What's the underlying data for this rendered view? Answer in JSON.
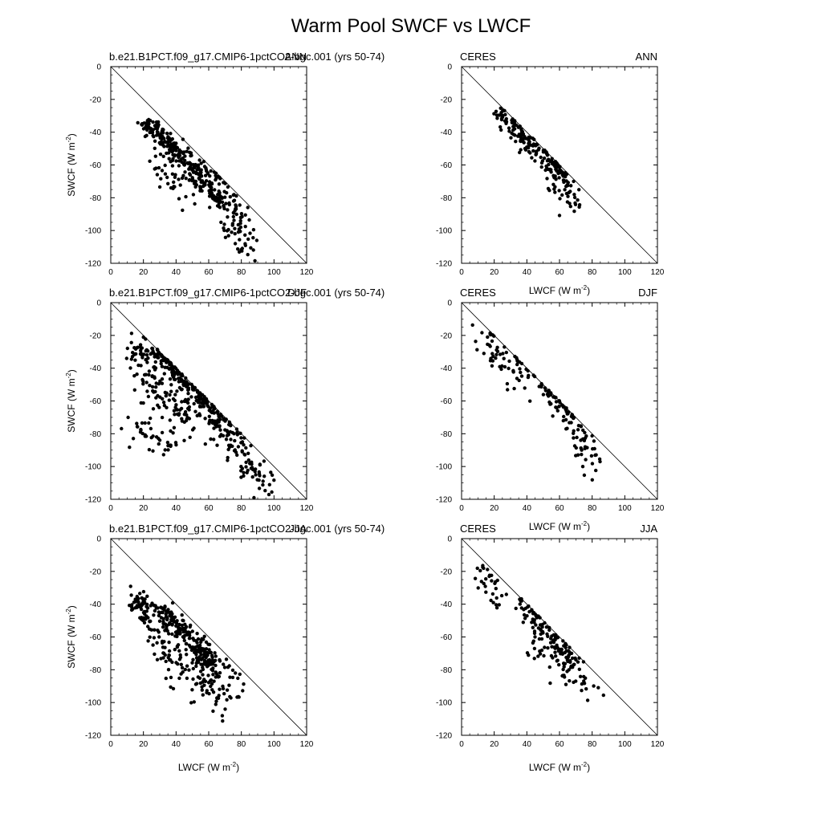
{
  "figure": {
    "title": "Warm Pool SWCF vs LWCF",
    "xlabel": "LWCF (W m",
    "ylabel": "SWCF (W m",
    "unit_exponent": "-2",
    "unit_close": ")"
  },
  "chart_data": [
    {
      "type": "scatter",
      "left_label": "b.e21.B1PCT.f09_g17.CMIP6-1pctCO2-bgc.001 (yrs 50-74)",
      "right_label": "ANN",
      "xlabel": "",
      "ylabel": "SWCF (W m-2)",
      "xlim": [
        0,
        120
      ],
      "ylim": [
        -120,
        0
      ],
      "xticks": [
        0,
        20,
        40,
        60,
        80,
        100,
        120
      ],
      "yticks": [
        0,
        -20,
        -40,
        -60,
        -80,
        -100,
        -120
      ],
      "reference_line": "1:1 (SWCF = -LWCF)",
      "clusters": [
        {
          "x": [
            20,
            30
          ],
          "y": [
            -36,
            -40
          ],
          "spread": 3,
          "n": 50
        },
        {
          "x": [
            30,
            45
          ],
          "y": [
            -40,
            -56
          ],
          "spread": 4,
          "n": 90
        },
        {
          "x": [
            45,
            60
          ],
          "y": [
            -56,
            -72
          ],
          "spread": 5,
          "n": 90
        },
        {
          "x": [
            60,
            72
          ],
          "y": [
            -70,
            -85
          ],
          "spread": 6,
          "n": 70
        },
        {
          "x": [
            72,
            86
          ],
          "y": [
            -85,
            -112
          ],
          "spread": 7,
          "n": 60
        },
        {
          "x": [
            28,
            50
          ],
          "y": [
            -60,
            -75
          ],
          "spread": 6,
          "n": 40
        }
      ]
    },
    {
      "type": "scatter",
      "left_label": "CERES",
      "right_label": "ANN",
      "xlabel": "",
      "ylabel": "",
      "xlim": [
        0,
        120
      ],
      "ylim": [
        -120,
        0
      ],
      "xticks": [
        0,
        20,
        40,
        60,
        80,
        100,
        120
      ],
      "yticks": [
        0,
        -20,
        -40,
        -60,
        -80,
        -100,
        -120
      ],
      "reference_line": "1:1 (SWCF = -LWCF)",
      "clusters": [
        {
          "x": [
            22,
            35
          ],
          "y": [
            -28,
            -40
          ],
          "spread": 4,
          "n": 50
        },
        {
          "x": [
            35,
            50
          ],
          "y": [
            -40,
            -55
          ],
          "spread": 5,
          "n": 60
        },
        {
          "x": [
            50,
            65
          ],
          "y": [
            -55,
            -70
          ],
          "spread": 6,
          "n": 60
        },
        {
          "x": [
            55,
            72
          ],
          "y": [
            -65,
            -85
          ],
          "spread": 7,
          "n": 40
        }
      ]
    },
    {
      "type": "scatter",
      "left_label": "b.e21.B1PCT.f09_g17.CMIP6-1pctCO2-bgc.001 (yrs 50-74)",
      "right_label": "DJF",
      "xlabel": "",
      "ylabel": "SWCF (W m-2)",
      "xlim": [
        0,
        120
      ],
      "ylim": [
        -120,
        0
      ],
      "xticks": [
        0,
        20,
        40,
        60,
        80,
        100,
        120
      ],
      "yticks": [
        0,
        -20,
        -40,
        -60,
        -80,
        -100,
        -120
      ],
      "reference_line": "1:1 (SWCF = -LWCF)",
      "clusters": [
        {
          "x": [
            12,
            30
          ],
          "y": [
            -28,
            -32
          ],
          "spread": 4,
          "n": 50
        },
        {
          "x": [
            30,
            55
          ],
          "y": [
            -32,
            -58
          ],
          "spread": 5,
          "n": 110
        },
        {
          "x": [
            15,
            50
          ],
          "y": [
            -40,
            -70
          ],
          "spread": 7,
          "n": 110
        },
        {
          "x": [
            55,
            75
          ],
          "y": [
            -58,
            -85
          ],
          "spread": 6,
          "n": 100
        },
        {
          "x": [
            75,
            98
          ],
          "y": [
            -85,
            -115
          ],
          "spread": 6,
          "n": 60
        },
        {
          "x": [
            15,
            40
          ],
          "y": [
            -75,
            -88
          ],
          "spread": 6,
          "n": 40
        }
      ]
    },
    {
      "type": "scatter",
      "left_label": "CERES",
      "right_label": "DJF",
      "xlabel": "",
      "ylabel": "",
      "xlim": [
        0,
        120
      ],
      "ylim": [
        -120,
        0
      ],
      "xticks": [
        0,
        20,
        40,
        60,
        80,
        100,
        120
      ],
      "yticks": [
        0,
        -20,
        -40,
        -60,
        -80,
        -100,
        -120
      ],
      "reference_line": "1:1 (SWCF = -LWCF)",
      "clusters": [
        {
          "x": [
            12,
            30
          ],
          "y": [
            -18,
            -40
          ],
          "spread": 6,
          "n": 40
        },
        {
          "x": [
            30,
            55
          ],
          "y": [
            -35,
            -55
          ],
          "spread": 7,
          "n": 40
        },
        {
          "x": [
            55,
            70
          ],
          "y": [
            -55,
            -75
          ],
          "spread": 6,
          "n": 40
        },
        {
          "x": [
            68,
            84
          ],
          "y": [
            -75,
            -105
          ],
          "spread": 6,
          "n": 40
        }
      ]
    },
    {
      "type": "scatter",
      "left_label": "b.e21.B1PCT.f09_g17.CMIP6-1pctCO2-bgc.001 (yrs 50-74)",
      "right_label": "JJA",
      "xlabel": "LWCF (W m-2)",
      "ylabel": "SWCF (W m-2)",
      "xlim": [
        0,
        120
      ],
      "ylim": [
        -120,
        0
      ],
      "xticks": [
        0,
        20,
        40,
        60,
        80,
        100,
        120
      ],
      "yticks": [
        0,
        -20,
        -40,
        -60,
        -80,
        -100,
        -120
      ],
      "reference_line": "1:1 (SWCF = -LWCF)",
      "clusters": [
        {
          "x": [
            15,
            25
          ],
          "y": [
            -35,
            -50
          ],
          "spread": 5,
          "n": 60
        },
        {
          "x": [
            28,
            45
          ],
          "y": [
            -40,
            -58
          ],
          "spread": 4,
          "n": 80
        },
        {
          "x": [
            45,
            65
          ],
          "y": [
            -58,
            -80
          ],
          "spread": 5,
          "n": 110
        },
        {
          "x": [
            25,
            75
          ],
          "y": [
            -60,
            -95
          ],
          "spread": 9,
          "n": 150
        }
      ]
    },
    {
      "type": "scatter",
      "left_label": "CERES",
      "right_label": "JJA",
      "xlabel": "LWCF (W m-2)",
      "ylabel": "",
      "xlim": [
        0,
        120
      ],
      "ylim": [
        -120,
        0
      ],
      "xticks": [
        0,
        20,
        40,
        60,
        80,
        100,
        120
      ],
      "yticks": [
        0,
        -20,
        -40,
        -60,
        -80,
        -100,
        -120
      ],
      "reference_line": "1:1 (SWCF = -LWCF)",
      "clusters": [
        {
          "x": [
            10,
            25
          ],
          "y": [
            -18,
            -40
          ],
          "spread": 5,
          "n": 30
        },
        {
          "x": [
            35,
            55
          ],
          "y": [
            -38,
            -60
          ],
          "spread": 5,
          "n": 60
        },
        {
          "x": [
            55,
            70
          ],
          "y": [
            -60,
            -78
          ],
          "spread": 5,
          "n": 60
        },
        {
          "x": [
            40,
            80
          ],
          "y": [
            -65,
            -90
          ],
          "spread": 6,
          "n": 40
        }
      ]
    }
  ]
}
